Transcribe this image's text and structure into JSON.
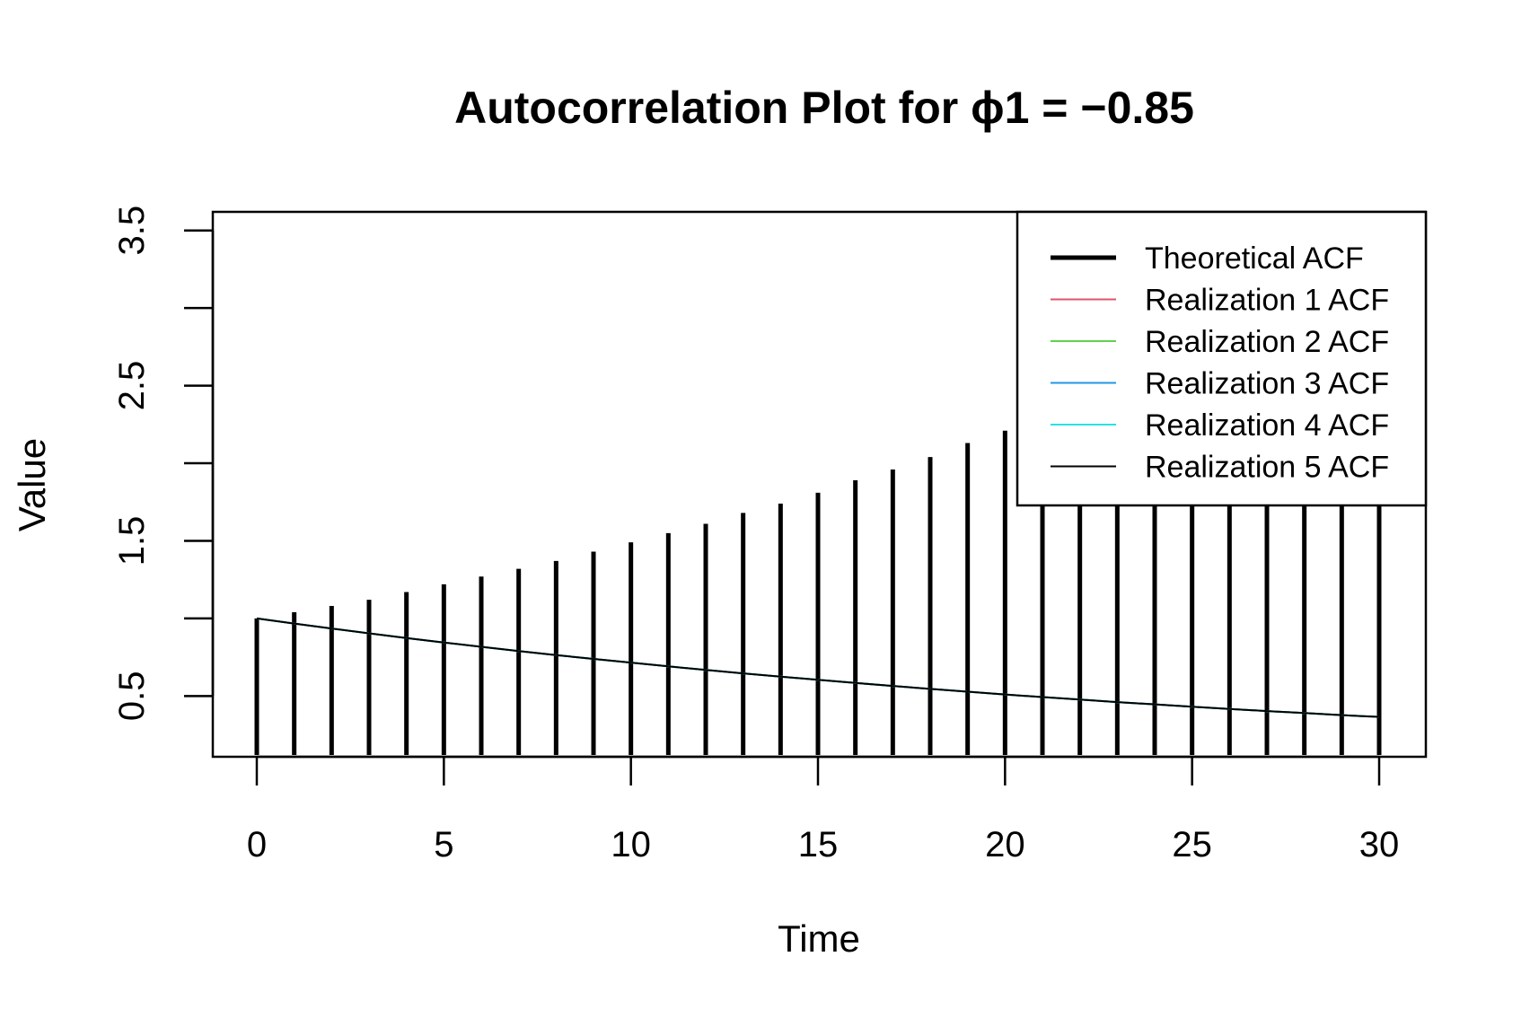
{
  "chart_data": {
    "type": "line",
    "title": "Autocorrelation Plot for ϕ1 = −0.85",
    "xlabel": "Time",
    "ylabel": "Value",
    "xlim": [
      0,
      30
    ],
    "ylim": [
      0.12,
      3.62
    ],
    "x_ticks": [
      0,
      5,
      10,
      15,
      20,
      25,
      30
    ],
    "x_tick_labels": [
      "0",
      "5",
      "10",
      "15",
      "20",
      "25",
      "30"
    ],
    "y_ticks": [
      0.5,
      1.0,
      1.5,
      2.0,
      2.5,
      3.0,
      3.5
    ],
    "y_tick_labels": [
      "0.5",
      "",
      "1.5",
      "",
      "2.5",
      "",
      "3.5"
    ],
    "grid": false,
    "legend_position": "top-right",
    "lags": [
      0,
      1,
      2,
      3,
      4,
      5,
      6,
      7,
      8,
      9,
      10,
      11,
      12,
      13,
      14,
      15,
      16,
      17,
      18,
      19,
      20,
      21,
      22,
      23,
      24,
      25,
      26,
      27,
      28,
      29,
      30
    ],
    "series": [
      {
        "name": "Theoretical ACF",
        "color": "#000000",
        "style": "spikes",
        "values": [
          1.0,
          1.04,
          1.08,
          1.12,
          1.17,
          1.22,
          1.27,
          1.32,
          1.37,
          1.43,
          1.49,
          1.55,
          1.61,
          1.68,
          1.74,
          1.81,
          1.89,
          1.96,
          2.04,
          2.13,
          2.21,
          2.3,
          2.39,
          2.49,
          2.59,
          2.7,
          2.8,
          2.92,
          3.03,
          3.16,
          3.28
        ]
      },
      {
        "name": "Realization 1 ACF",
        "color": "#DF536B",
        "style": "line",
        "values": [
          1.0,
          0.967,
          0.935,
          0.904,
          0.874,
          0.845,
          0.817,
          0.79,
          0.764,
          0.739,
          0.715,
          0.691,
          0.668,
          0.646,
          0.625,
          0.604,
          0.584,
          0.565,
          0.546,
          0.528,
          0.51,
          0.493,
          0.477,
          0.461,
          0.446,
          0.431,
          0.417,
          0.403,
          0.39,
          0.377,
          0.365
        ]
      },
      {
        "name": "Realization 2 ACF",
        "color": "#61D04F",
        "style": "line",
        "values": [
          1.0,
          0.967,
          0.935,
          0.904,
          0.874,
          0.845,
          0.817,
          0.79,
          0.764,
          0.739,
          0.715,
          0.691,
          0.668,
          0.646,
          0.625,
          0.604,
          0.584,
          0.565,
          0.546,
          0.528,
          0.51,
          0.493,
          0.477,
          0.461,
          0.446,
          0.431,
          0.417,
          0.403,
          0.39,
          0.377,
          0.365
        ]
      },
      {
        "name": "Realization 3 ACF",
        "color": "#2297E6",
        "style": "line",
        "values": [
          1.0,
          0.967,
          0.935,
          0.904,
          0.874,
          0.845,
          0.817,
          0.79,
          0.764,
          0.739,
          0.715,
          0.691,
          0.668,
          0.646,
          0.625,
          0.604,
          0.584,
          0.565,
          0.546,
          0.528,
          0.51,
          0.493,
          0.477,
          0.461,
          0.446,
          0.431,
          0.417,
          0.403,
          0.39,
          0.377,
          0.365
        ]
      },
      {
        "name": "Realization 4 ACF",
        "color": "#28E2E5",
        "style": "line",
        "values": [
          1.0,
          0.967,
          0.935,
          0.904,
          0.874,
          0.845,
          0.817,
          0.79,
          0.764,
          0.739,
          0.715,
          0.691,
          0.668,
          0.646,
          0.625,
          0.604,
          0.584,
          0.565,
          0.546,
          0.528,
          0.51,
          0.493,
          0.477,
          0.461,
          0.446,
          0.431,
          0.417,
          0.403,
          0.39,
          0.377,
          0.365
        ]
      },
      {
        "name": "Realization 5 ACF",
        "color": "#000000",
        "style": "line",
        "values": [
          1.0,
          0.967,
          0.935,
          0.904,
          0.874,
          0.845,
          0.817,
          0.79,
          0.764,
          0.739,
          0.715,
          0.691,
          0.668,
          0.646,
          0.625,
          0.604,
          0.584,
          0.565,
          0.546,
          0.528,
          0.51,
          0.493,
          0.477,
          0.461,
          0.446,
          0.431,
          0.417,
          0.403,
          0.39,
          0.377,
          0.365
        ]
      }
    ]
  }
}
